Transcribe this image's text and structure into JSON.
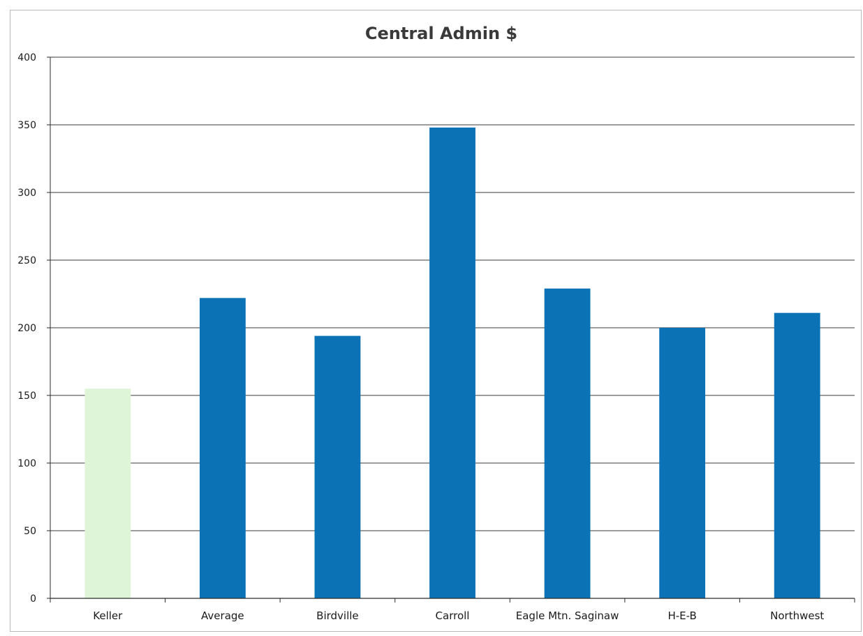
{
  "chart_data": {
    "type": "bar",
    "title": "Central Admin $",
    "xlabel": "",
    "ylabel": "",
    "categories": [
      "Keller",
      "Average",
      "Birdville",
      "Carroll",
      "Eagle Mtn. Saginaw",
      "H-E-B",
      "Northwest"
    ],
    "values": [
      155,
      222,
      194,
      348,
      229,
      200,
      211
    ],
    "highlight_index": 0,
    "ylim": [
      0,
      400
    ],
    "yticks": [
      0,
      50,
      100,
      150,
      200,
      250,
      300,
      350,
      400
    ],
    "grid": true,
    "legend": "none",
    "colors": {
      "bar": "#0b72b5",
      "highlight": "#dff5d8",
      "grid": "#3a3a3a",
      "axis": "#2a2a2a"
    }
  }
}
